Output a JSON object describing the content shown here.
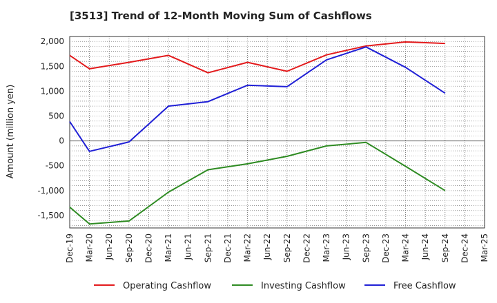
{
  "chart_data": {
    "type": "line",
    "title": "[3513]  Trend of 12-Month Moving Sum of Cashflows",
    "ylabel": "Amount (million yen)",
    "xlabel": "",
    "ylim": [
      -1750,
      2100
    ],
    "yticks": [
      2000,
      1500,
      1000,
      500,
      0,
      -500,
      -1000,
      -1500
    ],
    "ytick_labels": [
      "2,000",
      "1,500",
      "1,000",
      "500",
      "0",
      "-500",
      "-1,000",
      "-1,500"
    ],
    "categories": [
      "Dec-19",
      "Mar-20",
      "Jun-20",
      "Sep-20",
      "Dec-20",
      "Mar-21",
      "Jun-21",
      "Sep-21",
      "Dec-21",
      "Mar-22",
      "Jun-22",
      "Sep-22",
      "Dec-22",
      "Mar-23",
      "Jun-23",
      "Sep-23",
      "Dec-23",
      "Mar-24",
      "Jun-24",
      "Sep-24",
      "Dec-24",
      "Mar-25"
    ],
    "grid": true,
    "legend_position": "bottom",
    "series": [
      {
        "name": "Operating Cashflow",
        "color": "#e31a1c",
        "points": [
          [
            0,
            1720
          ],
          [
            1,
            1450
          ],
          [
            3,
            1580
          ],
          [
            5,
            1720
          ],
          [
            7,
            1370
          ],
          [
            9,
            1580
          ],
          [
            11,
            1400
          ],
          [
            13,
            1730
          ],
          [
            15,
            1910
          ],
          [
            17,
            1990
          ],
          [
            19,
            1960
          ]
        ]
      },
      {
        "name": "Investing Cashflow",
        "color": "#2e8b22",
        "points": [
          [
            0,
            -1330
          ],
          [
            1,
            -1670
          ],
          [
            3,
            -1610
          ],
          [
            5,
            -1030
          ],
          [
            7,
            -580
          ],
          [
            9,
            -460
          ],
          [
            11,
            -310
          ],
          [
            13,
            -100
          ],
          [
            15,
            -30
          ],
          [
            17,
            -510
          ],
          [
            19,
            -1000
          ]
        ]
      },
      {
        "name": "Free Cashflow",
        "color": "#1f1fd6",
        "points": [
          [
            0,
            390
          ],
          [
            1,
            -210
          ],
          [
            3,
            -20
          ],
          [
            5,
            700
          ],
          [
            7,
            790
          ],
          [
            9,
            1120
          ],
          [
            11,
            1090
          ],
          [
            13,
            1630
          ],
          [
            15,
            1890
          ],
          [
            17,
            1480
          ],
          [
            19,
            960
          ]
        ]
      }
    ]
  }
}
